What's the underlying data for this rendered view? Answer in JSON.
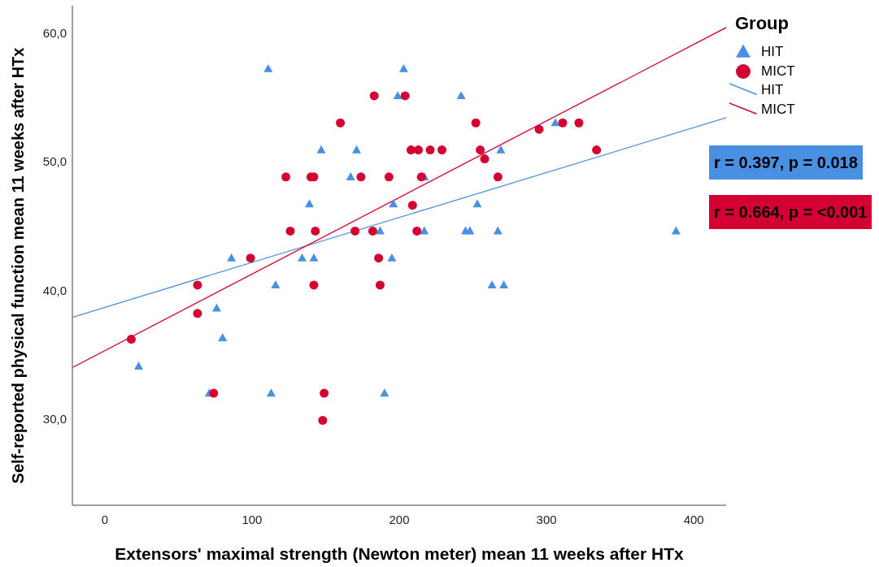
{
  "chart_data": {
    "type": "scatter",
    "xlabel": "Extensors' maximal strength (Newton meter) mean 11 weeks after HTx",
    "ylabel": "Self-reported physical function mean 11 weeks after HTx",
    "legend_title": "Group",
    "legend": "top right",
    "annotations": [
      "r = 0.397, p = 0.018",
      "r = 0.664, p = <0.001"
    ],
    "xlim": [
      -22,
      422
    ],
    "xticks": [
      0,
      100,
      200,
      300,
      400
    ],
    "ylim": [
      23.3,
      62.1
    ],
    "yticks": [
      {
        "value": 30,
        "label": "30,0"
      },
      {
        "value": 40,
        "label": "40,0"
      },
      {
        "value": 50,
        "label": "50,0"
      },
      {
        "value": 60,
        "label": "60,0"
      }
    ],
    "series": [
      {
        "name": "HIT",
        "marker": "triangle",
        "color": "#4a90e2",
        "x": [
          111,
          203,
          199,
          242,
          147,
          171,
          269,
          306,
          167,
          217,
          139,
          196,
          253,
          187,
          217,
          245,
          248,
          267,
          388,
          86,
          134,
          142,
          195,
          116,
          263,
          271,
          76,
          80,
          23,
          71,
          113,
          190
        ],
        "values": [
          57.2,
          57.2,
          55.1,
          55.1,
          50.9,
          50.9,
          50.9,
          53.0,
          48.8,
          48.8,
          46.7,
          46.7,
          46.7,
          44.6,
          44.6,
          44.6,
          44.6,
          44.6,
          44.6,
          42.5,
          42.5,
          42.5,
          42.5,
          40.4,
          40.4,
          40.4,
          38.6,
          36.3,
          34.1,
          32.0,
          32.0,
          32.0
        ]
      },
      {
        "name": "MICT",
        "marker": "circle",
        "color": "#d50032",
        "x": [
          183,
          204,
          160,
          252,
          295,
          311,
          322,
          208,
          213,
          221,
          229,
          255,
          258,
          334,
          123,
          140,
          142,
          174,
          193,
          215,
          267,
          209,
          126,
          143,
          170,
          182,
          212,
          99,
          186,
          63,
          142,
          187,
          63,
          18,
          74,
          149,
          148
        ],
        "values": [
          55.1,
          55.1,
          53.0,
          53.0,
          52.5,
          53.0,
          53.0,
          50.9,
          50.9,
          50.9,
          50.9,
          50.9,
          50.2,
          50.9,
          48.8,
          48.8,
          48.8,
          48.8,
          48.8,
          48.8,
          48.8,
          46.6,
          44.6,
          44.6,
          44.6,
          44.6,
          44.6,
          42.5,
          42.5,
          40.4,
          40.4,
          40.4,
          38.2,
          36.2,
          32.0,
          32.0,
          29.9
        ]
      },
      {
        "name": "HIT",
        "type": "line",
        "color": "#4a90e2",
        "x": [
          -22,
          422
        ],
        "values": [
          37.9,
          53.4
        ]
      },
      {
        "name": "MICT",
        "type": "line",
        "color": "#d50032",
        "x": [
          -22,
          422
        ],
        "values": [
          34.0,
          60.4
        ]
      }
    ]
  }
}
